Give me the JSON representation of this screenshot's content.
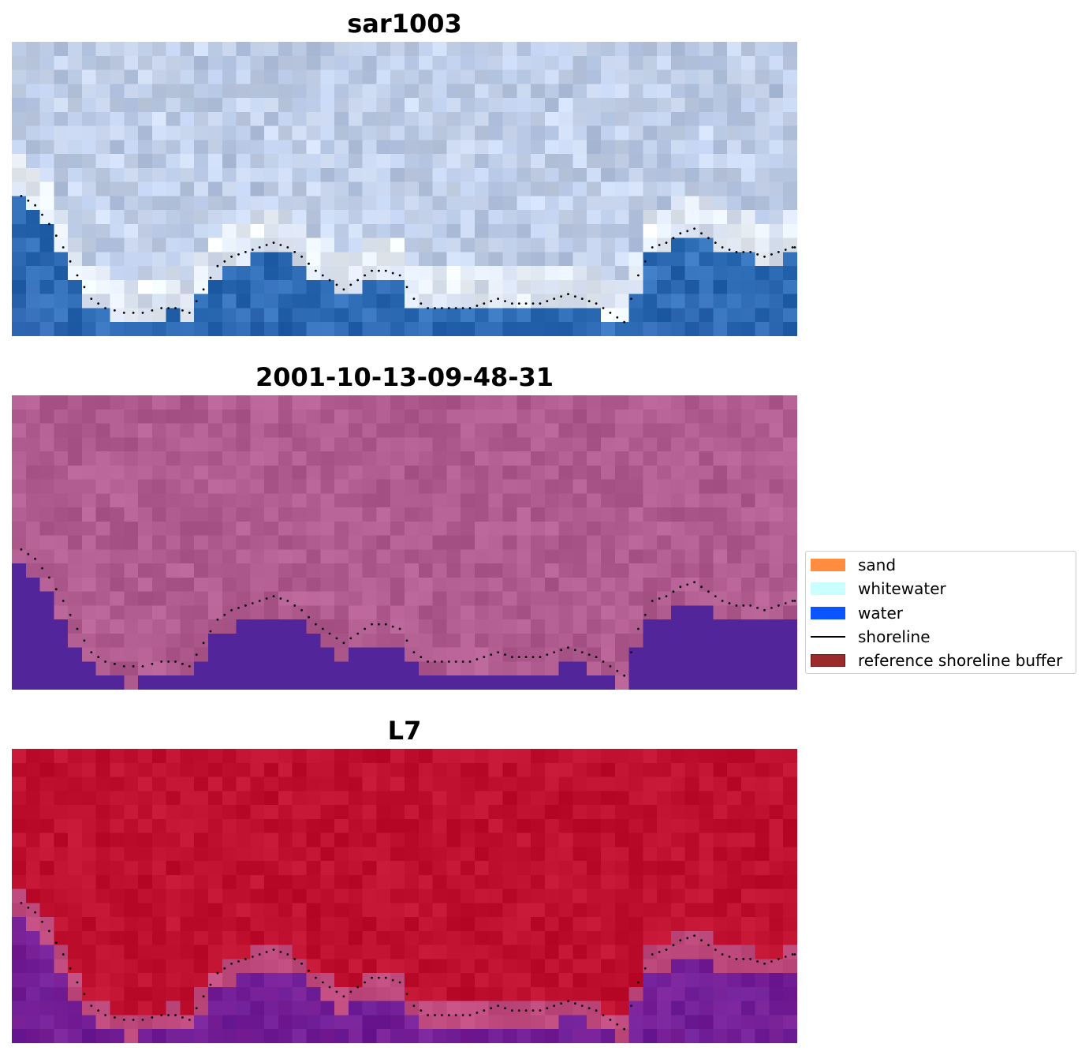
{
  "chart_data": [
    {
      "type": "heatmap",
      "title": "sar1003",
      "series_name": "shoreline",
      "shoreline_x": [
        2,
        5,
        8,
        11,
        14,
        17,
        20,
        24,
        28,
        32,
        35,
        38,
        41,
        44,
        47,
        50,
        53,
        56,
        59,
        62,
        65,
        68,
        71,
        74,
        77,
        80,
        83,
        86,
        89,
        92,
        95,
        98,
        101,
        104,
        107,
        110,
        113,
        116,
        119,
        122,
        125,
        128,
        131,
        134,
        137,
        140,
        143,
        146,
        149,
        152,
        155,
        158,
        161,
        164,
        167,
        168
      ],
      "shoreline_y": [
        33,
        35,
        39,
        44,
        50,
        55,
        57,
        58,
        58,
        57,
        57,
        58,
        53,
        48,
        46,
        45,
        44,
        43,
        44,
        46,
        49,
        51,
        53,
        51,
        49,
        49,
        50,
        55,
        57,
        57,
        57,
        57,
        56,
        55,
        56,
        56,
        56,
        55,
        54,
        55,
        56,
        58,
        60,
        50,
        44,
        43,
        41,
        40,
        42,
        44,
        45,
        45,
        46,
        45,
        44,
        44
      ]
    },
    {
      "type": "heatmap",
      "title": "2001-10-13-09-48-31",
      "series_name": "shoreline"
    },
    {
      "type": "heatmap",
      "title": "L7",
      "series_name": "shoreline"
    }
  ],
  "legend": {
    "placement": "center-right",
    "items": [
      {
        "label": "sand",
        "kind": "patch",
        "color": "#ff8c3f"
      },
      {
        "label": "whitewater",
        "kind": "patch",
        "color": "#c9ffff"
      },
      {
        "label": "water",
        "kind": "patch",
        "color": "#0a55ff"
      },
      {
        "label": "shoreline",
        "kind": "line",
        "color": "#000000"
      },
      {
        "label": "reference shoreline buffer",
        "kind": "patch",
        "color": "#9b2b2b"
      }
    ]
  },
  "colors": {
    "rgb_water": "#3070b8",
    "rgb_land": "#c8d4ea",
    "class_land": "#b05c90",
    "class_water": "#53259a",
    "ndwi_high": "#c01030",
    "ndwi_low": "#7a2096"
  }
}
